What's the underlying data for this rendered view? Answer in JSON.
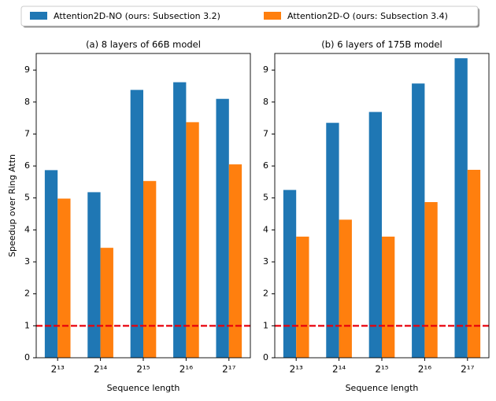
{
  "chart_data": [
    {
      "type": "bar",
      "title": "(a) 8 layers of 66B model",
      "xlabel": "Sequence length",
      "ylabel": "Speedup over Ring Attn",
      "categories": [
        "2¹³",
        "2¹⁴",
        "2¹⁵",
        "2¹⁶",
        "2¹⁷"
      ],
      "series": [
        {
          "name": "Attention2D-NO (ours: Subsection 3.2)",
          "color": "#1f77b4",
          "values": [
            5.87,
            5.18,
            8.38,
            8.62,
            8.1
          ]
        },
        {
          "name": "Attention2D-O (ours: Subsection 3.4)",
          "color": "#ff7f0e",
          "values": [
            4.98,
            3.44,
            5.53,
            7.37,
            6.05
          ]
        }
      ],
      "ylim": [
        0,
        9.52
      ],
      "yticks": [
        0,
        1,
        2,
        3,
        4,
        5,
        6,
        7,
        8,
        9
      ],
      "reference_line": {
        "value": 1,
        "color": "#e8000b"
      }
    },
    {
      "type": "bar",
      "title": "(b) 6 layers of 175B model",
      "xlabel": "Sequence length",
      "categories": [
        "2¹³",
        "2¹⁴",
        "2¹⁵",
        "2¹⁶",
        "2¹⁷"
      ],
      "series": [
        {
          "color": "#1f77b4",
          "values": [
            5.25,
            7.35,
            7.69,
            8.58,
            9.37
          ]
        },
        {
          "color": "#ff7f0e",
          "values": [
            3.79,
            4.32,
            3.79,
            4.87,
            5.88
          ]
        }
      ],
      "ylim": [
        0,
        9.52
      ],
      "yticks": [
        0,
        1,
        2,
        3,
        4,
        5,
        6,
        7,
        8,
        9
      ],
      "reference_line": {
        "value": 1,
        "color": "#e8000b"
      }
    }
  ]
}
